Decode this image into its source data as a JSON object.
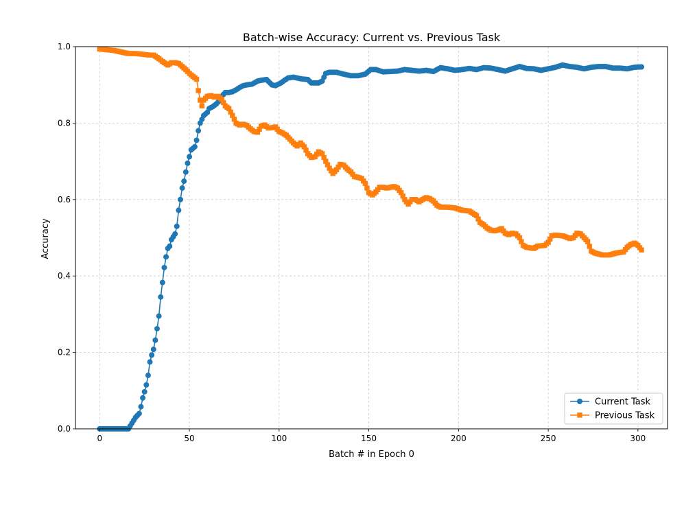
{
  "chart_data": {
    "type": "line",
    "title": "Batch-wise Accuracy: Current vs. Previous Task",
    "xlabel": "Batch # in Epoch 0",
    "ylabel": "Accuracy",
    "xlim": [
      -13.5,
      316.5
    ],
    "ylim": [
      0,
      1
    ],
    "x_ticks": [
      0,
      50,
      100,
      150,
      200,
      250,
      300
    ],
    "y_ticks": [
      0.0,
      0.2,
      0.4,
      0.6,
      0.8,
      1.0
    ],
    "x_tick_labels": [
      "0",
      "50",
      "100",
      "150",
      "200",
      "250",
      "300"
    ],
    "y_tick_labels": [
      "0.0",
      "0.2",
      "0.4",
      "0.6",
      "0.8",
      "1.0"
    ],
    "grid": true,
    "legend_position": "lower-right",
    "series": [
      {
        "name": "Current Task",
        "color": "#1f77b4",
        "marker": "circle",
        "points": [
          [
            0,
            0
          ],
          [
            16,
            0
          ],
          [
            18,
            0.015
          ],
          [
            20,
            0.03
          ],
          [
            22,
            0.04
          ],
          [
            23,
            0.058
          ],
          [
            24,
            0.081
          ],
          [
            25,
            0.097
          ],
          [
            26,
            0.115
          ],
          [
            27,
            0.14
          ],
          [
            28,
            0.175
          ],
          [
            29,
            0.193
          ],
          [
            30,
            0.208
          ],
          [
            31,
            0.232
          ],
          [
            32,
            0.262
          ],
          [
            33,
            0.295
          ],
          [
            34,
            0.345
          ],
          [
            35,
            0.383
          ],
          [
            36,
            0.422
          ],
          [
            37,
            0.45
          ],
          [
            38,
            0.472
          ],
          [
            39,
            0.478
          ],
          [
            40,
            0.495
          ],
          [
            42,
            0.51
          ],
          [
            43,
            0.53
          ],
          [
            44,
            0.572
          ],
          [
            45,
            0.6
          ],
          [
            46,
            0.63
          ],
          [
            47,
            0.648
          ],
          [
            48,
            0.672
          ],
          [
            49,
            0.695
          ],
          [
            50,
            0.712
          ],
          [
            51,
            0.73
          ],
          [
            53,
            0.738
          ],
          [
            54,
            0.755
          ],
          [
            55,
            0.78
          ],
          [
            56,
            0.8
          ],
          [
            57,
            0.81
          ],
          [
            58,
            0.82
          ],
          [
            60,
            0.828
          ],
          [
            61,
            0.838
          ],
          [
            63,
            0.843
          ],
          [
            65,
            0.85
          ],
          [
            67,
            0.86
          ],
          [
            68,
            0.87
          ],
          [
            70,
            0.88
          ],
          [
            72,
            0.88
          ],
          [
            74,
            0.882
          ],
          [
            76,
            0.887
          ],
          [
            78,
            0.893
          ],
          [
            80,
            0.898
          ],
          [
            82,
            0.9
          ],
          [
            85,
            0.902
          ],
          [
            88,
            0.91
          ],
          [
            90,
            0.912
          ],
          [
            93,
            0.914
          ],
          [
            96,
            0.9
          ],
          [
            98,
            0.898
          ],
          [
            101,
            0.905
          ],
          [
            103,
            0.912
          ],
          [
            105,
            0.918
          ],
          [
            108,
            0.92
          ],
          [
            112,
            0.916
          ],
          [
            116,
            0.914
          ],
          [
            118,
            0.905
          ],
          [
            122,
            0.905
          ],
          [
            124,
            0.91
          ],
          [
            126,
            0.93
          ],
          [
            128,
            0.933
          ],
          [
            132,
            0.933
          ],
          [
            136,
            0.928
          ],
          [
            140,
            0.924
          ],
          [
            144,
            0.924
          ],
          [
            148,
            0.928
          ],
          [
            151,
            0.94
          ],
          [
            154,
            0.94
          ],
          [
            158,
            0.934
          ],
          [
            162,
            0.935
          ],
          [
            166,
            0.936
          ],
          [
            170,
            0.94
          ],
          [
            174,
            0.938
          ],
          [
            178,
            0.936
          ],
          [
            182,
            0.938
          ],
          [
            186,
            0.935
          ],
          [
            190,
            0.945
          ],
          [
            194,
            0.942
          ],
          [
            198,
            0.938
          ],
          [
            202,
            0.94
          ],
          [
            206,
            0.943
          ],
          [
            210,
            0.94
          ],
          [
            214,
            0.945
          ],
          [
            218,
            0.944
          ],
          [
            222,
            0.94
          ],
          [
            226,
            0.936
          ],
          [
            230,
            0.942
          ],
          [
            234,
            0.948
          ],
          [
            238,
            0.943
          ],
          [
            242,
            0.942
          ],
          [
            246,
            0.938
          ],
          [
            250,
            0.942
          ],
          [
            254,
            0.946
          ],
          [
            258,
            0.952
          ],
          [
            262,
            0.948
          ],
          [
            266,
            0.946
          ],
          [
            270,
            0.942
          ],
          [
            274,
            0.946
          ],
          [
            278,
            0.948
          ],
          [
            282,
            0.948
          ],
          [
            286,
            0.944
          ],
          [
            290,
            0.944
          ],
          [
            294,
            0.942
          ],
          [
            298,
            0.946
          ],
          [
            302,
            0.947
          ]
        ]
      },
      {
        "name": "Previous Task",
        "color": "#ff7f0e",
        "marker": "square",
        "points": [
          [
            0,
            0.994
          ],
          [
            4,
            0.992
          ],
          [
            8,
            0.99
          ],
          [
            12,
            0.986
          ],
          [
            16,
            0.982
          ],
          [
            20,
            0.982
          ],
          [
            24,
            0.98
          ],
          [
            28,
            0.978
          ],
          [
            30,
            0.978
          ],
          [
            32,
            0.972
          ],
          [
            34,
            0.965
          ],
          [
            36,
            0.958
          ],
          [
            38,
            0.952
          ],
          [
            40,
            0.958
          ],
          [
            42,
            0.958
          ],
          [
            44,
            0.956
          ],
          [
            46,
            0.948
          ],
          [
            48,
            0.94
          ],
          [
            50,
            0.93
          ],
          [
            52,
            0.922
          ],
          [
            54,
            0.915
          ],
          [
            55,
            0.885
          ],
          [
            56,
            0.86
          ],
          [
            57,
            0.845
          ],
          [
            58,
            0.86
          ],
          [
            60,
            0.87
          ],
          [
            62,
            0.872
          ],
          [
            64,
            0.868
          ],
          [
            66,
            0.87
          ],
          [
            68,
            0.862
          ],
          [
            70,
            0.845
          ],
          [
            72,
            0.838
          ],
          [
            74,
            0.82
          ],
          [
            76,
            0.8
          ],
          [
            78,
            0.795
          ],
          [
            80,
            0.797
          ],
          [
            82,
            0.794
          ],
          [
            84,
            0.785
          ],
          [
            86,
            0.778
          ],
          [
            88,
            0.776
          ],
          [
            90,
            0.792
          ],
          [
            92,
            0.795
          ],
          [
            94,
            0.787
          ],
          [
            96,
            0.788
          ],
          [
            98,
            0.79
          ],
          [
            100,
            0.778
          ],
          [
            102,
            0.774
          ],
          [
            104,
            0.768
          ],
          [
            106,
            0.758
          ],
          [
            108,
            0.748
          ],
          [
            110,
            0.74
          ],
          [
            112,
            0.748
          ],
          [
            114,
            0.738
          ],
          [
            116,
            0.72
          ],
          [
            118,
            0.71
          ],
          [
            120,
            0.712
          ],
          [
            122,
            0.725
          ],
          [
            124,
            0.72
          ],
          [
            126,
            0.7
          ],
          [
            128,
            0.682
          ],
          [
            130,
            0.668
          ],
          [
            132,
            0.678
          ],
          [
            134,
            0.692
          ],
          [
            136,
            0.69
          ],
          [
            138,
            0.68
          ],
          [
            140,
            0.672
          ],
          [
            142,
            0.66
          ],
          [
            144,
            0.658
          ],
          [
            146,
            0.655
          ],
          [
            148,
            0.642
          ],
          [
            150,
            0.618
          ],
          [
            152,
            0.612
          ],
          [
            154,
            0.62
          ],
          [
            156,
            0.632
          ],
          [
            158,
            0.632
          ],
          [
            160,
            0.63
          ],
          [
            162,
            0.632
          ],
          [
            164,
            0.634
          ],
          [
            166,
            0.63
          ],
          [
            168,
            0.618
          ],
          [
            170,
            0.6
          ],
          [
            172,
            0.588
          ],
          [
            174,
            0.6
          ],
          [
            176,
            0.6
          ],
          [
            178,
            0.594
          ],
          [
            180,
            0.6
          ],
          [
            182,
            0.605
          ],
          [
            184,
            0.602
          ],
          [
            186,
            0.596
          ],
          [
            188,
            0.585
          ],
          [
            190,
            0.58
          ],
          [
            194,
            0.58
          ],
          [
            198,
            0.578
          ],
          [
            202,
            0.572
          ],
          [
            206,
            0.57
          ],
          [
            210,
            0.558
          ],
          [
            212,
            0.54
          ],
          [
            214,
            0.534
          ],
          [
            216,
            0.525
          ],
          [
            218,
            0.52
          ],
          [
            220,
            0.518
          ],
          [
            222,
            0.52
          ],
          [
            224,
            0.524
          ],
          [
            226,
            0.512
          ],
          [
            228,
            0.508
          ],
          [
            230,
            0.512
          ],
          [
            232,
            0.51
          ],
          [
            234,
            0.5
          ],
          [
            236,
            0.48
          ],
          [
            238,
            0.475
          ],
          [
            242,
            0.472
          ],
          [
            244,
            0.478
          ],
          [
            248,
            0.48
          ],
          [
            250,
            0.488
          ],
          [
            252,
            0.505
          ],
          [
            254,
            0.507
          ],
          [
            258,
            0.505
          ],
          [
            260,
            0.502
          ],
          [
            262,
            0.498
          ],
          [
            264,
            0.5
          ],
          [
            266,
            0.512
          ],
          [
            268,
            0.51
          ],
          [
            270,
            0.5
          ],
          [
            272,
            0.49
          ],
          [
            274,
            0.465
          ],
          [
            276,
            0.46
          ],
          [
            280,
            0.455
          ],
          [
            284,
            0.455
          ],
          [
            288,
            0.46
          ],
          [
            292,
            0.463
          ],
          [
            294,
            0.475
          ],
          [
            296,
            0.482
          ],
          [
            298,
            0.486
          ],
          [
            300,
            0.48
          ],
          [
            302,
            0.468
          ]
        ]
      }
    ]
  }
}
